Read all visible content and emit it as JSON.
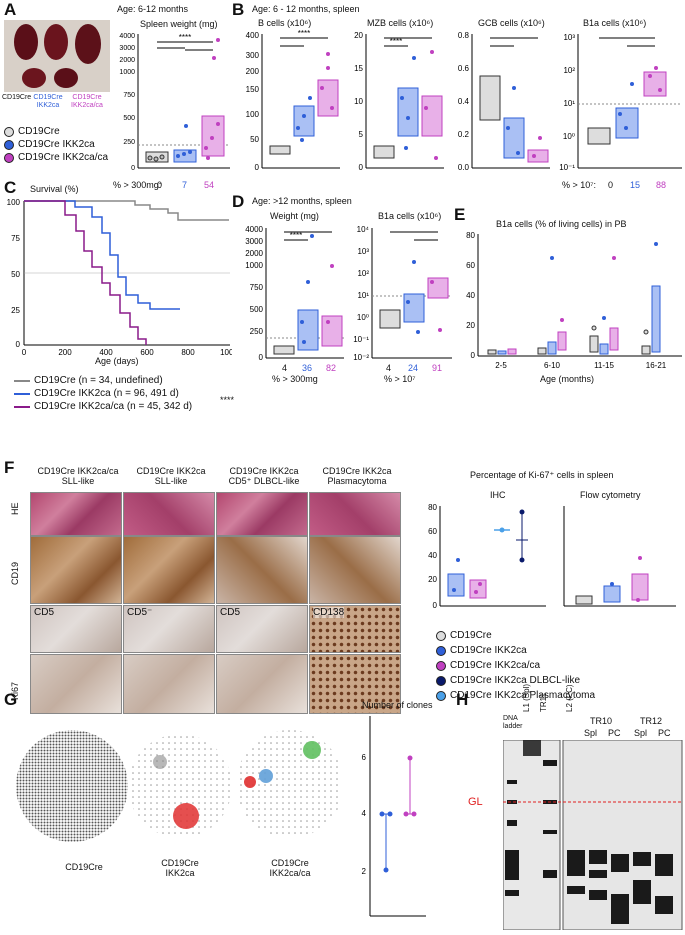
{
  "panels": {
    "A": "A",
    "B": "B",
    "C": "C",
    "D": "D",
    "E": "E",
    "F": "F",
    "G": "G",
    "H": "H"
  },
  "panel_a": {
    "age": "Age: 6-12 months",
    "spleen_title": "Spleen weight (mg)",
    "photo_labels": [
      "CD19Cre",
      "CD19Cre IKK2ca",
      "CD19Cre IKK2ca/ca"
    ],
    "pct_label": "% > 300mg:",
    "pct_values": [
      "0",
      "7",
      "54"
    ],
    "legend": [
      "CD19Cre",
      "CD19Cre IKK2ca",
      "CD19Cre IKK2ca/ca"
    ]
  },
  "panel_b": {
    "age": "Age: 6 - 12 months, spleen",
    "titles": [
      "B cells (x10⁶)",
      "MZB cells (x10⁶)",
      "GCB cells (x10⁶)",
      "B1a cells (x10⁶)"
    ],
    "pct_label": "% > 10⁷:",
    "pct_values": [
      "0",
      "15",
      "88"
    ]
  },
  "panel_c": {
    "title": "Survival (%)",
    "xlabel": "Age (days)",
    "legend": [
      "CD19Cre (n = 34, undefined)",
      "CD19Cre IKK2ca (n = 96, 491 d)",
      "CD19Cre IKK2ca/ca (n = 45, 342 d)"
    ],
    "sig": "****"
  },
  "panel_d": {
    "age": "Age: >12 months, spleen",
    "titles": [
      "Weight (mg)",
      "B1a cells (x10⁶)"
    ],
    "counts_w": [
      "4",
      "36",
      "82"
    ],
    "counts_b": [
      "4",
      "24",
      "91"
    ],
    "pct_w": "% > 300mg",
    "pct_b": "% > 10⁷"
  },
  "panel_e": {
    "title": "B1a cells (% of living cells) in PB",
    "xlabel": "Age (months)"
  },
  "panel_f": {
    "col_headers": [
      "CD19Cre IKK2ca/ca\nSLL-like",
      "CD19Cre IKK2ca\nSLL-like",
      "CD19Cre IKK2ca\nCD5⁺ DLBCL-like",
      "CD19Cre IKK2ca\nPlasmacytoma"
    ],
    "row_labels": [
      "HE",
      "CD19",
      "",
      "Ki67"
    ],
    "tile_labels": [
      "CD5",
      "CD5⁻",
      "CD5",
      "CD138"
    ],
    "ki67_title": "Percentage of Ki-67⁺ cells in spleen",
    "ihc": "IHC",
    "flow": "Flow cytometry",
    "legend": [
      "CD19Cre",
      "CD19Cre IKK2ca",
      "CD19Cre IKK2ca/ca",
      "CD19Cre IKK2ca DLBCL-like",
      "CD19Cre IKK2ca Plasmacytoma"
    ]
  },
  "panel_g": {
    "labels": [
      "CD19Cre",
      "CD19Cre\nIKK2ca",
      "CD19Cre\nIKK2ca/ca"
    ],
    "clones_title": "Number of clones"
  },
  "panel_h": {
    "lanes": [
      "DNA ladder",
      "L1 (Spl)",
      "TR11",
      "L2 (PC)",
      "TR10",
      "TR12",
      "Spl",
      "PC",
      "Spl",
      "PC"
    ],
    "gl": "GL"
  },
  "colors": {
    "wt": "#c9c9c9",
    "ca": "#2f5fd8",
    "caca": "#c040c0",
    "dlbcl": "#0a1a6b",
    "plasma": "#4aa0e8"
  },
  "chart_data": [
    {
      "type": "box",
      "title": "Spleen weight (mg)",
      "categories": [
        "CD19Cre",
        "CD19Cre IKK2ca",
        "CD19Cre IKK2ca/ca"
      ],
      "ylim": [
        0,
        4000
      ],
      "y_ticks": [
        0,
        250,
        500,
        750,
        1000,
        2000,
        3000,
        4000
      ],
      "medians": [
        140,
        170,
        340
      ]
    },
    {
      "type": "box",
      "title": "B cells (x10⁶)",
      "ylim": [
        0,
        400
      ],
      "y_ticks": [
        0,
        50,
        100,
        150,
        200,
        300,
        400
      ],
      "medians": [
        35,
        85,
        125
      ]
    },
    {
      "type": "box",
      "title": "MZB cells (x10⁶)",
      "ylim": [
        0,
        20
      ],
      "y_ticks": [
        0,
        5,
        10,
        15,
        20
      ],
      "medians": [
        2.5,
        10,
        8
      ]
    },
    {
      "type": "box",
      "title": "GCB cells (x10⁶)",
      "ylim": [
        0,
        0.8
      ],
      "y_ticks": [
        0.0,
        0.2,
        0.4,
        0.6,
        0.8
      ],
      "medians": [
        0.5,
        0.17,
        0.12
      ]
    },
    {
      "type": "box",
      "title": "B1a cells (x10⁶)",
      "scale": "log",
      "ylim": [
        0.1,
        1000
      ],
      "y_ticks": [
        "10⁻¹",
        "10⁰",
        "10¹",
        "10²",
        "10³"
      ],
      "medians": [
        0.7,
        3,
        40
      ]
    },
    {
      "type": "line",
      "title": "Survival (%)",
      "xlabel": "Age (days)",
      "xlim": [
        0,
        1000
      ],
      "ylim": [
        0,
        100
      ],
      "x_ticks": [
        0,
        200,
        400,
        600,
        800,
        1000
      ],
      "y_ticks": [
        0,
        25,
        50,
        75,
        100
      ],
      "series": [
        {
          "name": "CD19Cre (n = 34, undefined)",
          "x": [
            0,
            550,
            600,
            680,
            720,
            1000
          ],
          "y": [
            100,
            97,
            94,
            91,
            87,
            87
          ]
        },
        {
          "name": "CD19Cre IKK2ca (n = 96, 491 d)",
          "x": [
            0,
            250,
            330,
            380,
            420,
            460,
            500,
            560,
            620,
            700,
            760
          ],
          "y": [
            100,
            97,
            92,
            85,
            75,
            60,
            45,
            35,
            30,
            30,
            30
          ]
        },
        {
          "name": "CD19Cre IKK2ca/ca (n = 45, 342 d)",
          "x": [
            0,
            200,
            260,
            300,
            340,
            380,
            420,
            470,
            520,
            560,
            600
          ],
          "y": [
            100,
            90,
            80,
            68,
            55,
            45,
            35,
            25,
            15,
            8,
            3
          ]
        }
      ]
    },
    {
      "type": "box",
      "title": "Weight (mg)",
      "ylim": [
        0,
        4000
      ],
      "medians": [
        150,
        280,
        430
      ]
    },
    {
      "type": "box",
      "title": "B1a cells (x10⁶)",
      "scale": "log",
      "ylim": [
        0.01,
        10000
      ],
      "medians": [
        0.9,
        3,
        25
      ]
    },
    {
      "type": "box",
      "title": "B1a cells (% of living cells) in PB",
      "categories": [
        "2-5",
        "6-10",
        "11-15",
        "16-21"
      ],
      "ylim": [
        0,
        80
      ],
      "y_ticks": [
        0,
        20,
        40,
        60,
        80
      ]
    },
    {
      "type": "box",
      "title": "IHC",
      "ylim": [
        0,
        80
      ],
      "y_ticks": [
        0,
        20,
        40,
        60,
        80
      ],
      "medians": [
        17,
        10,
        60,
        52
      ]
    },
    {
      "type": "box",
      "title": "Flow cytometry",
      "ylim": [
        0,
        80
      ],
      "medians": [
        6,
        12,
        15
      ]
    },
    {
      "type": "scatter",
      "title": "Number of clones",
      "ylim": [
        0,
        7
      ],
      "y_ticks": [
        2,
        4,
        6
      ],
      "series": [
        {
          "name": "CD19Cre IKK2ca",
          "values": [
            4,
            4,
            2
          ]
        },
        {
          "name": "CD19Cre IKK2ca/ca",
          "values": [
            4,
            4,
            6
          ]
        }
      ]
    }
  ]
}
